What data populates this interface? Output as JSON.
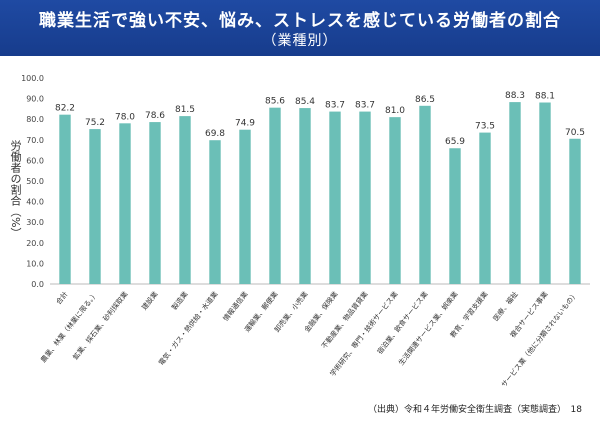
{
  "header": {
    "title": "職業生活で強い不安、悩み、ストレスを感じている労働者の割合",
    "subtitle": "（業種別）"
  },
  "chart_data": {
    "type": "bar",
    "categories": [
      "合計",
      "農業、林業（林業に限る。）",
      "鉱業、採石業、砂利採取業",
      "建設業",
      "製造業",
      "電気・ガス・熱供給・水道業",
      "情報通信業",
      "運輸業、郵便業",
      "卸売業、小売業",
      "金融業、保険業",
      "不動産業、物品賃貸業",
      "学術研究、専門・技術サービス業",
      "宿泊業、飲食サービス業",
      "生活関連サービス業、娯楽業",
      "教育、学習支援業",
      "医療、福祉",
      "複合サービス事業",
      "サービス業（他に分類されないもの）"
    ],
    "values": [
      82.2,
      75.2,
      78.0,
      78.6,
      81.5,
      69.8,
      74.9,
      85.6,
      85.4,
      83.7,
      83.7,
      81.0,
      86.5,
      65.9,
      73.5,
      88.3,
      88.1,
      70.5
    ],
    "value_labels": [
      "82.2",
      "75.2",
      "78.0",
      "78.6",
      "81.5",
      "69.8",
      "74.9",
      "85.6",
      "85.4",
      "83.7",
      "83.7",
      "81.0",
      "86.5",
      "65.9",
      "73.5",
      "88.3",
      "88.1",
      "70.5"
    ],
    "ylabel": "労働者の割合（%）",
    "ylim": [
      0,
      100
    ],
    "yticks": [
      "0.0",
      "10.0",
      "20.0",
      "30.0",
      "40.0",
      "50.0",
      "60.0",
      "70.0",
      "80.0",
      "90.0",
      "100.0"
    ],
    "grid": false,
    "bar_color": "#6bbfb7"
  },
  "footer": {
    "source": "（出典）令和４年労働安全衛生調査（実態調査）",
    "page_number": "18"
  }
}
